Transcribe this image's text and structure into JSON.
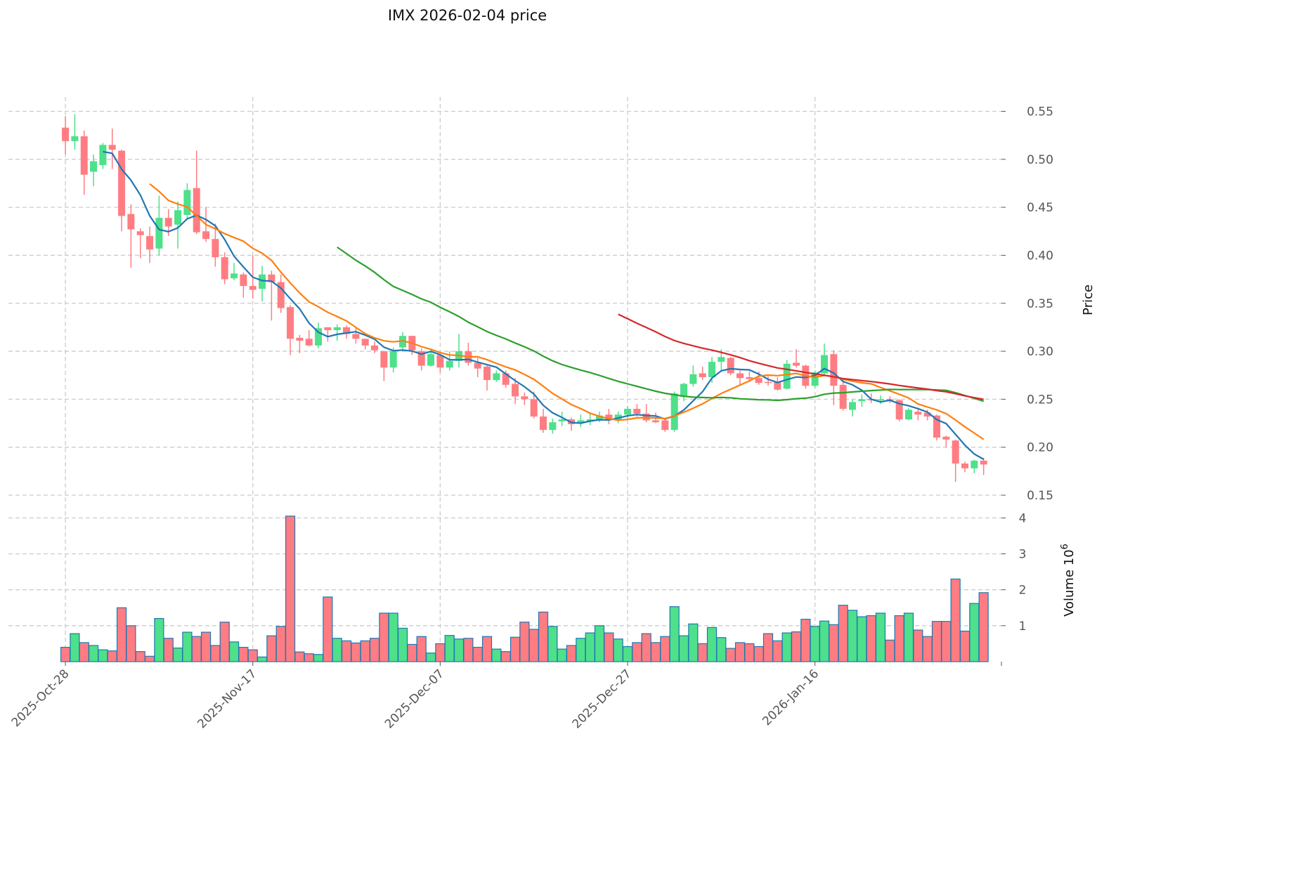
{
  "chart_data": {
    "type": "candlestick",
    "title": "IMX  2026-02-04  price",
    "ylabel_price": "Price",
    "ylabel_volume": "Volume  10",
    "ylabel_volume_exp": "6",
    "start_date": "2025-10-28",
    "x_ticks": [
      {
        "index": 0,
        "label": "2025-Oct-28"
      },
      {
        "index": 20,
        "label": "2025-Nov-17"
      },
      {
        "index": 40,
        "label": "2025-Dec-07"
      },
      {
        "index": 60,
        "label": "2025-Dec-27"
      },
      {
        "index": 80,
        "label": "2026-Jan-16"
      }
    ],
    "price_ylim": [
      0.1405,
      0.565
    ],
    "price_ticks": [
      0.15,
      0.2,
      0.25,
      0.3,
      0.35,
      0.4,
      0.45,
      0.5,
      0.55
    ],
    "price_tick_labels": [
      "0.15",
      "0.20",
      "0.25",
      "0.30",
      "0.35",
      "0.40",
      "0.45",
      "0.50",
      "0.55"
    ],
    "volume_ylim": [
      0,
      4.3
    ],
    "volume_ticks": [
      1,
      2,
      3,
      4
    ],
    "volume_tick_labels": [
      "1",
      "2",
      "3",
      "4"
    ],
    "grid": true,
    "colors": {
      "up": "#4ee08a",
      "down": "#ff7d82",
      "volume_edge": "#1f77b4",
      "ma5": "#1f77b4",
      "ma10": "#ff7f0e",
      "ma30": "#2ca02c",
      "ma60": "#d62728"
    },
    "moving_averages": [
      5,
      10,
      30,
      60
    ],
    "ohlc": [
      [
        0.533,
        0.545,
        0.505,
        0.519
      ],
      [
        0.519,
        0.547,
        0.51,
        0.524
      ],
      [
        0.524,
        0.53,
        0.463,
        0.484
      ],
      [
        0.487,
        0.505,
        0.472,
        0.498
      ],
      [
        0.494,
        0.517,
        0.49,
        0.515
      ],
      [
        0.515,
        0.532,
        0.49,
        0.51
      ],
      [
        0.509,
        0.51,
        0.425,
        0.441
      ],
      [
        0.443,
        0.453,
        0.387,
        0.427
      ],
      [
        0.425,
        0.428,
        0.397,
        0.421
      ],
      [
        0.42,
        0.43,
        0.392,
        0.406
      ],
      [
        0.407,
        0.462,
        0.4,
        0.439
      ],
      [
        0.439,
        0.448,
        0.42,
        0.43
      ],
      [
        0.432,
        0.456,
        0.407,
        0.447
      ],
      [
        0.442,
        0.475,
        0.437,
        0.468
      ],
      [
        0.47,
        0.509,
        0.422,
        0.424
      ],
      [
        0.425,
        0.45,
        0.414,
        0.417
      ],
      [
        0.417,
        0.433,
        0.388,
        0.398
      ],
      [
        0.398,
        0.403,
        0.37,
        0.375
      ],
      [
        0.376,
        0.392,
        0.374,
        0.381
      ],
      [
        0.38,
        0.382,
        0.356,
        0.368
      ],
      [
        0.368,
        0.4,
        0.355,
        0.364
      ],
      [
        0.365,
        0.389,
        0.352,
        0.38
      ],
      [
        0.38,
        0.384,
        0.332,
        0.372
      ],
      [
        0.372,
        0.38,
        0.34,
        0.345
      ],
      [
        0.346,
        0.348,
        0.296,
        0.313
      ],
      [
        0.314,
        0.317,
        0.298,
        0.311
      ],
      [
        0.313,
        0.322,
        0.305,
        0.306
      ],
      [
        0.306,
        0.33,
        0.303,
        0.324
      ],
      [
        0.325,
        0.325,
        0.31,
        0.322
      ],
      [
        0.322,
        0.328,
        0.311,
        0.325
      ],
      [
        0.325,
        0.327,
        0.313,
        0.318
      ],
      [
        0.318,
        0.324,
        0.308,
        0.313
      ],
      [
        0.313,
        0.313,
        0.302,
        0.306
      ],
      [
        0.306,
        0.31,
        0.298,
        0.301
      ],
      [
        0.3,
        0.3,
        0.269,
        0.283
      ],
      [
        0.283,
        0.304,
        0.278,
        0.3
      ],
      [
        0.304,
        0.32,
        0.3,
        0.316
      ],
      [
        0.316,
        0.316,
        0.296,
        0.301
      ],
      [
        0.3,
        0.303,
        0.28,
        0.285
      ],
      [
        0.285,
        0.301,
        0.284,
        0.297
      ],
      [
        0.296,
        0.297,
        0.278,
        0.283
      ],
      [
        0.283,
        0.3,
        0.28,
        0.29
      ],
      [
        0.29,
        0.318,
        0.283,
        0.3
      ],
      [
        0.3,
        0.309,
        0.285,
        0.288
      ],
      [
        0.288,
        0.293,
        0.273,
        0.282
      ],
      [
        0.284,
        0.285,
        0.259,
        0.27
      ],
      [
        0.27,
        0.28,
        0.268,
        0.277
      ],
      [
        0.277,
        0.28,
        0.262,
        0.265
      ],
      [
        0.266,
        0.272,
        0.245,
        0.253
      ],
      [
        0.253,
        0.257,
        0.244,
        0.25
      ],
      [
        0.25,
        0.258,
        0.23,
        0.232
      ],
      [
        0.232,
        0.24,
        0.215,
        0.218
      ],
      [
        0.218,
        0.23,
        0.214,
        0.226
      ],
      [
        0.227,
        0.237,
        0.222,
        0.229
      ],
      [
        0.229,
        0.231,
        0.217,
        0.224
      ],
      [
        0.226,
        0.234,
        0.221,
        0.228
      ],
      [
        0.227,
        0.235,
        0.223,
        0.229
      ],
      [
        0.229,
        0.237,
        0.226,
        0.233
      ],
      [
        0.234,
        0.24,
        0.224,
        0.228
      ],
      [
        0.228,
        0.237,
        0.225,
        0.234
      ],
      [
        0.234,
        0.243,
        0.23,
        0.24
      ],
      [
        0.24,
        0.245,
        0.232,
        0.235
      ],
      [
        0.235,
        0.245,
        0.226,
        0.228
      ],
      [
        0.228,
        0.236,
        0.225,
        0.226
      ],
      [
        0.228,
        0.229,
        0.216,
        0.218
      ],
      [
        0.218,
        0.258,
        0.216,
        0.256
      ],
      [
        0.253,
        0.267,
        0.248,
        0.266
      ],
      [
        0.266,
        0.285,
        0.263,
        0.276
      ],
      [
        0.277,
        0.284,
        0.27,
        0.273
      ],
      [
        0.273,
        0.294,
        0.267,
        0.289
      ],
      [
        0.289,
        0.302,
        0.279,
        0.294
      ],
      [
        0.293,
        0.294,
        0.275,
        0.277
      ],
      [
        0.277,
        0.28,
        0.264,
        0.272
      ],
      [
        0.273,
        0.279,
        0.268,
        0.271
      ],
      [
        0.272,
        0.279,
        0.265,
        0.267
      ],
      [
        0.268,
        0.274,
        0.264,
        0.267
      ],
      [
        0.268,
        0.273,
        0.259,
        0.26
      ],
      [
        0.261,
        0.291,
        0.26,
        0.287
      ],
      [
        0.288,
        0.302,
        0.283,
        0.285
      ],
      [
        0.285,
        0.286,
        0.261,
        0.264
      ],
      [
        0.264,
        0.28,
        0.262,
        0.278
      ],
      [
        0.277,
        0.308,
        0.275,
        0.296
      ],
      [
        0.297,
        0.301,
        0.244,
        0.264
      ],
      [
        0.265,
        0.272,
        0.238,
        0.24
      ],
      [
        0.239,
        0.25,
        0.232,
        0.247
      ],
      [
        0.248,
        0.255,
        0.242,
        0.25
      ],
      [
        0.25,
        0.256,
        0.246,
        0.249
      ],
      [
        0.249,
        0.254,
        0.245,
        0.25
      ],
      [
        0.25,
        0.253,
        0.246,
        0.249
      ],
      [
        0.249,
        0.25,
        0.227,
        0.229
      ],
      [
        0.229,
        0.241,
        0.228,
        0.239
      ],
      [
        0.237,
        0.24,
        0.228,
        0.234
      ],
      [
        0.236,
        0.239,
        0.228,
        0.232
      ],
      [
        0.233,
        0.234,
        0.207,
        0.21
      ],
      [
        0.211,
        0.212,
        0.2,
        0.208
      ],
      [
        0.207,
        0.208,
        0.164,
        0.183
      ],
      [
        0.183,
        0.185,
        0.174,
        0.178
      ],
      [
        0.178,
        0.187,
        0.173,
        0.186
      ],
      [
        0.186,
        0.189,
        0.171,
        0.182
      ]
    ],
    "volume": [
      0.4,
      0.78,
      0.53,
      0.45,
      0.33,
      0.3,
      1.5,
      1.0,
      0.28,
      0.15,
      1.2,
      0.65,
      0.38,
      0.82,
      0.7,
      0.82,
      0.45,
      1.1,
      0.55,
      0.4,
      0.33,
      0.13,
      0.72,
      0.98,
      4.05,
      0.27,
      0.22,
      0.2,
      1.8,
      0.65,
      0.58,
      0.52,
      0.58,
      0.65,
      1.35,
      1.35,
      0.93,
      0.48,
      0.7,
      0.24,
      0.5,
      0.73,
      0.63,
      0.65,
      0.4,
      0.7,
      0.35,
      0.28,
      0.68,
      1.1,
      0.9,
      1.38,
      0.98,
      0.35,
      0.45,
      0.65,
      0.8,
      1.0,
      0.8,
      0.63,
      0.42,
      0.53,
      0.78,
      0.53,
      0.7,
      1.53,
      0.72,
      1.05,
      0.5,
      0.95,
      0.67,
      0.37,
      0.53,
      0.5,
      0.42,
      0.78,
      0.58,
      0.8,
      0.83,
      1.18,
      0.98,
      1.13,
      1.03,
      1.57,
      1.43,
      1.25,
      1.28,
      1.35,
      0.6,
      1.28,
      1.35,
      0.88,
      0.7,
      1.12,
      1.12,
      2.3,
      0.85,
      1.62,
      1.92
    ]
  }
}
